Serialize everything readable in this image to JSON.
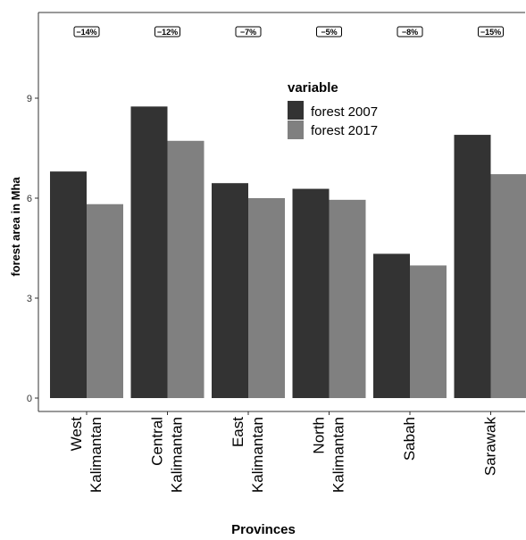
{
  "chart_data": {
    "type": "bar",
    "categories": [
      [
        "West",
        "Kalimantan"
      ],
      [
        "Central",
        "Kalimantan"
      ],
      [
        "East",
        "Kalimantan"
      ],
      [
        "North",
        "Kalimantan"
      ],
      [
        "Sabah"
      ],
      [
        "Sarawak"
      ]
    ],
    "series": [
      {
        "name": "forest 2007",
        "color": "#333333",
        "values": [
          6.8,
          8.75,
          6.45,
          6.28,
          4.33,
          7.9
        ]
      },
      {
        "name": "forest 2017",
        "color": "#808080",
        "values": [
          5.82,
          7.72,
          6.0,
          5.95,
          3.98,
          6.72
        ]
      }
    ],
    "annotations": [
      "−14%",
      "−12%",
      "−7%",
      "−5%",
      "−8%",
      "−15%"
    ],
    "title": "",
    "xlabel": "Provinces",
    "ylabel": "forest area in Mha",
    "yticks": [
      0,
      3,
      6,
      9
    ],
    "ylim": [
      0,
      9.0
    ],
    "legend": {
      "title": "variable",
      "position": "top-right"
    },
    "grid": false
  }
}
